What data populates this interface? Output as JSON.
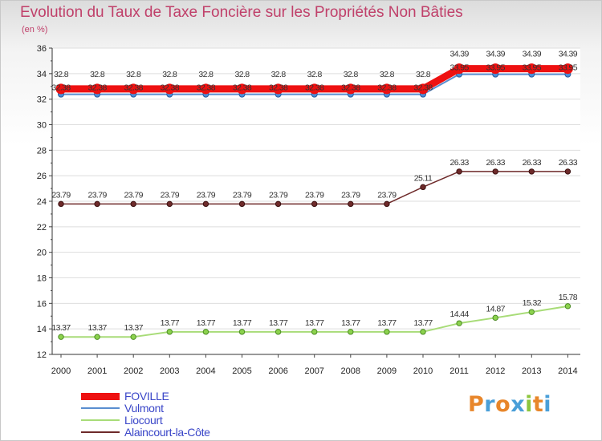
{
  "header": {
    "title": "Evolution du Taux de Taxe Foncière sur les Propriétés Non Bâties",
    "unit": "(en %)"
  },
  "logo": {
    "text": "Proxiti",
    "colors": [
      "#e8862a",
      "#4a9fd8",
      "#e8862a",
      "#4a9fd8",
      "#8cc63e",
      "#e8862a",
      "#4a9fd8"
    ]
  },
  "chart_data": {
    "type": "line",
    "title": "Evolution du Taux de Taxe Foncière sur les Propriétés Non Bâties",
    "ylabel": "(en %)",
    "xlabel": "",
    "ylim": [
      12,
      36
    ],
    "yticks": [
      12,
      14,
      16,
      18,
      20,
      22,
      24,
      26,
      28,
      30,
      32,
      34,
      36
    ],
    "grid": "y",
    "legend_position": "bottom-left",
    "categories": [
      "2000",
      "2001",
      "2002",
      "2003",
      "2004",
      "2005",
      "2006",
      "2007",
      "2008",
      "2009",
      "2010",
      "2011",
      "2012",
      "2013",
      "2014"
    ],
    "series": [
      {
        "name": "FOVILLE",
        "color": "#ee1111",
        "values": [
          32.8,
          32.8,
          32.8,
          32.8,
          32.8,
          32.8,
          32.8,
          32.8,
          32.8,
          32.8,
          32.8,
          34.39,
          34.39,
          34.39,
          34.39
        ],
        "labels": [
          "32.8",
          "32.8",
          "32.8",
          "32.8",
          "32.8",
          "32.8",
          "32.8",
          "32.8",
          "32.8",
          "32.8",
          "32.8",
          "34.39",
          "34.39",
          "34.39",
          "34.39"
        ]
      },
      {
        "name": "Vulmont",
        "color": "#5a8ed0",
        "values": [
          32.38,
          32.38,
          32.38,
          32.38,
          32.38,
          32.38,
          32.38,
          32.38,
          32.38,
          32.38,
          32.38,
          33.95,
          33.95,
          33.95,
          33.95
        ],
        "labels": [
          "32.38",
          "32.38",
          "32.38",
          "32.38",
          "32.38",
          "32.38",
          "32.38",
          "32.38",
          "32.38",
          "32.38",
          "32.38",
          "33.95",
          "33.95",
          "33.95",
          "33.95"
        ]
      },
      {
        "name": "Liocourt",
        "color": "#a8dc78",
        "values": [
          13.37,
          13.37,
          13.37,
          13.77,
          13.77,
          13.77,
          13.77,
          13.77,
          13.77,
          13.77,
          13.77,
          14.44,
          14.87,
          15.32,
          15.78
        ],
        "labels": [
          "13.37",
          "13.37",
          "13.37",
          "13.77",
          "13.77",
          "13.77",
          "13.77",
          "13.77",
          "13.77",
          "13.77",
          "13.77",
          "14.44",
          "14.87",
          "15.32",
          "15.78"
        ]
      },
      {
        "name": "Alaincourt-la-Côte",
        "color": "#6e2a2a",
        "values": [
          23.79,
          23.79,
          23.79,
          23.79,
          23.79,
          23.79,
          23.79,
          23.79,
          23.79,
          23.79,
          25.11,
          26.33,
          26.33,
          26.33,
          26.33
        ],
        "labels": [
          "23.79",
          "23.79",
          "23.79",
          "23.79",
          "23.79",
          "23.79",
          "23.79",
          "23.79",
          "23.79",
          "23.79",
          "25.11",
          "26.33",
          "26.33",
          "26.33",
          "26.33"
        ]
      }
    ]
  }
}
